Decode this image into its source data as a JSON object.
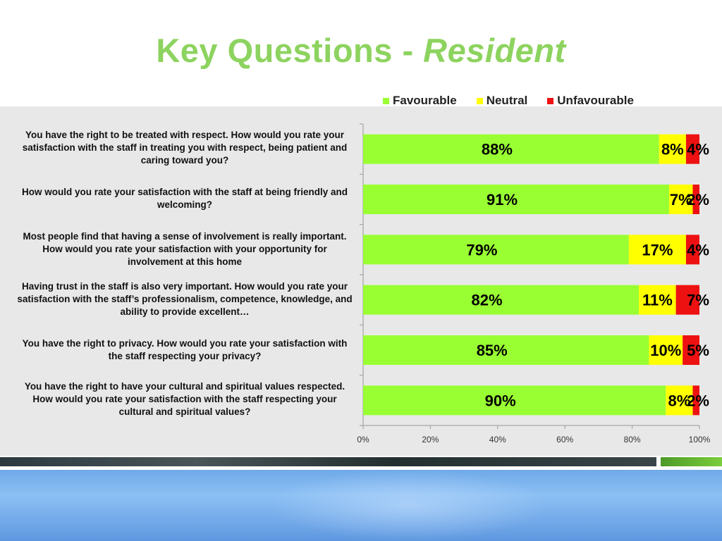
{
  "title": {
    "main": "Key Questions - ",
    "italic": "Resident"
  },
  "colors": {
    "title": "#8dd35f",
    "favourable": "#99ff33",
    "neutral": "#ffff00",
    "unfavourable": "#ee1111",
    "panel": "#e8e8e8"
  },
  "legend": [
    {
      "label": "Favourable",
      "color": "#99ff33"
    },
    {
      "label": "Neutral",
      "color": "#ffff00"
    },
    {
      "label": "Unfavourable",
      "color": "#ee1111"
    }
  ],
  "questions": [
    "You have the right to be treated with respect. How would you rate your satisfaction with the staff in treating you with respect, being patient and caring toward you?",
    "How would you rate your satisfaction with the staff at being friendly and welcoming?",
    "Most people find that having a sense of involvement is really important. How would you rate your satisfaction with your opportunity for involvement at this home",
    "Having trust in the staff is also very important. How would you rate your satisfaction with the staff’s professionalism, competence, knowledge, and ability to provide excellent…",
    "You have the right to privacy. How would you rate your satisfaction with the staff respecting your privacy?",
    "You have the right to have your cultural and spiritual values respected.  How would you rate your satisfaction with the staff respecting your cultural and spiritual values?"
  ],
  "chart_data": {
    "type": "bar",
    "orientation": "horizontal",
    "stacked": "percent",
    "categories": [
      "You have the right to be treated with respect. How would you rate your satisfaction with the staff in treating you with respect, being patient and caring toward you?",
      "How would you rate your satisfaction with the staff at being friendly and welcoming?",
      "Most people find that having a sense of involvement is really important. How would you rate your satisfaction with your opportunity for involvement at this home",
      "Having trust in the staff is also very important. How would you rate your satisfaction with the staff’s professionalism, competence, knowledge, and ability to provide excellent…",
      "You have the right to privacy. How would you rate your satisfaction with the staff respecting your privacy?",
      "You have the right to have your cultural and spiritual values respected.  How would you rate your satisfaction with the staff respecting your cultural and spiritual values?"
    ],
    "series": [
      {
        "name": "Favourable",
        "values": [
          88,
          91,
          79,
          82,
          85,
          90
        ],
        "labels": [
          "88%",
          "91%",
          "79%",
          "82%",
          "85%",
          "90%"
        ]
      },
      {
        "name": "Neutral",
        "values": [
          8,
          7,
          17,
          11,
          10,
          8
        ],
        "labels": [
          "8%",
          "7%",
          "17%",
          "11%",
          "10%",
          "8%"
        ]
      },
      {
        "name": "Unfavourable",
        "values": [
          4,
          2,
          4,
          7,
          5,
          2
        ],
        "labels": [
          "4%",
          "2%",
          "4%",
          "7%",
          "5%",
          "2%"
        ]
      }
    ],
    "xlim": [
      0,
      100
    ],
    "xticks": [
      "0%",
      "20%",
      "40%",
      "60%",
      "80%",
      "100%"
    ],
    "legend_position": "top",
    "grid": false
  }
}
